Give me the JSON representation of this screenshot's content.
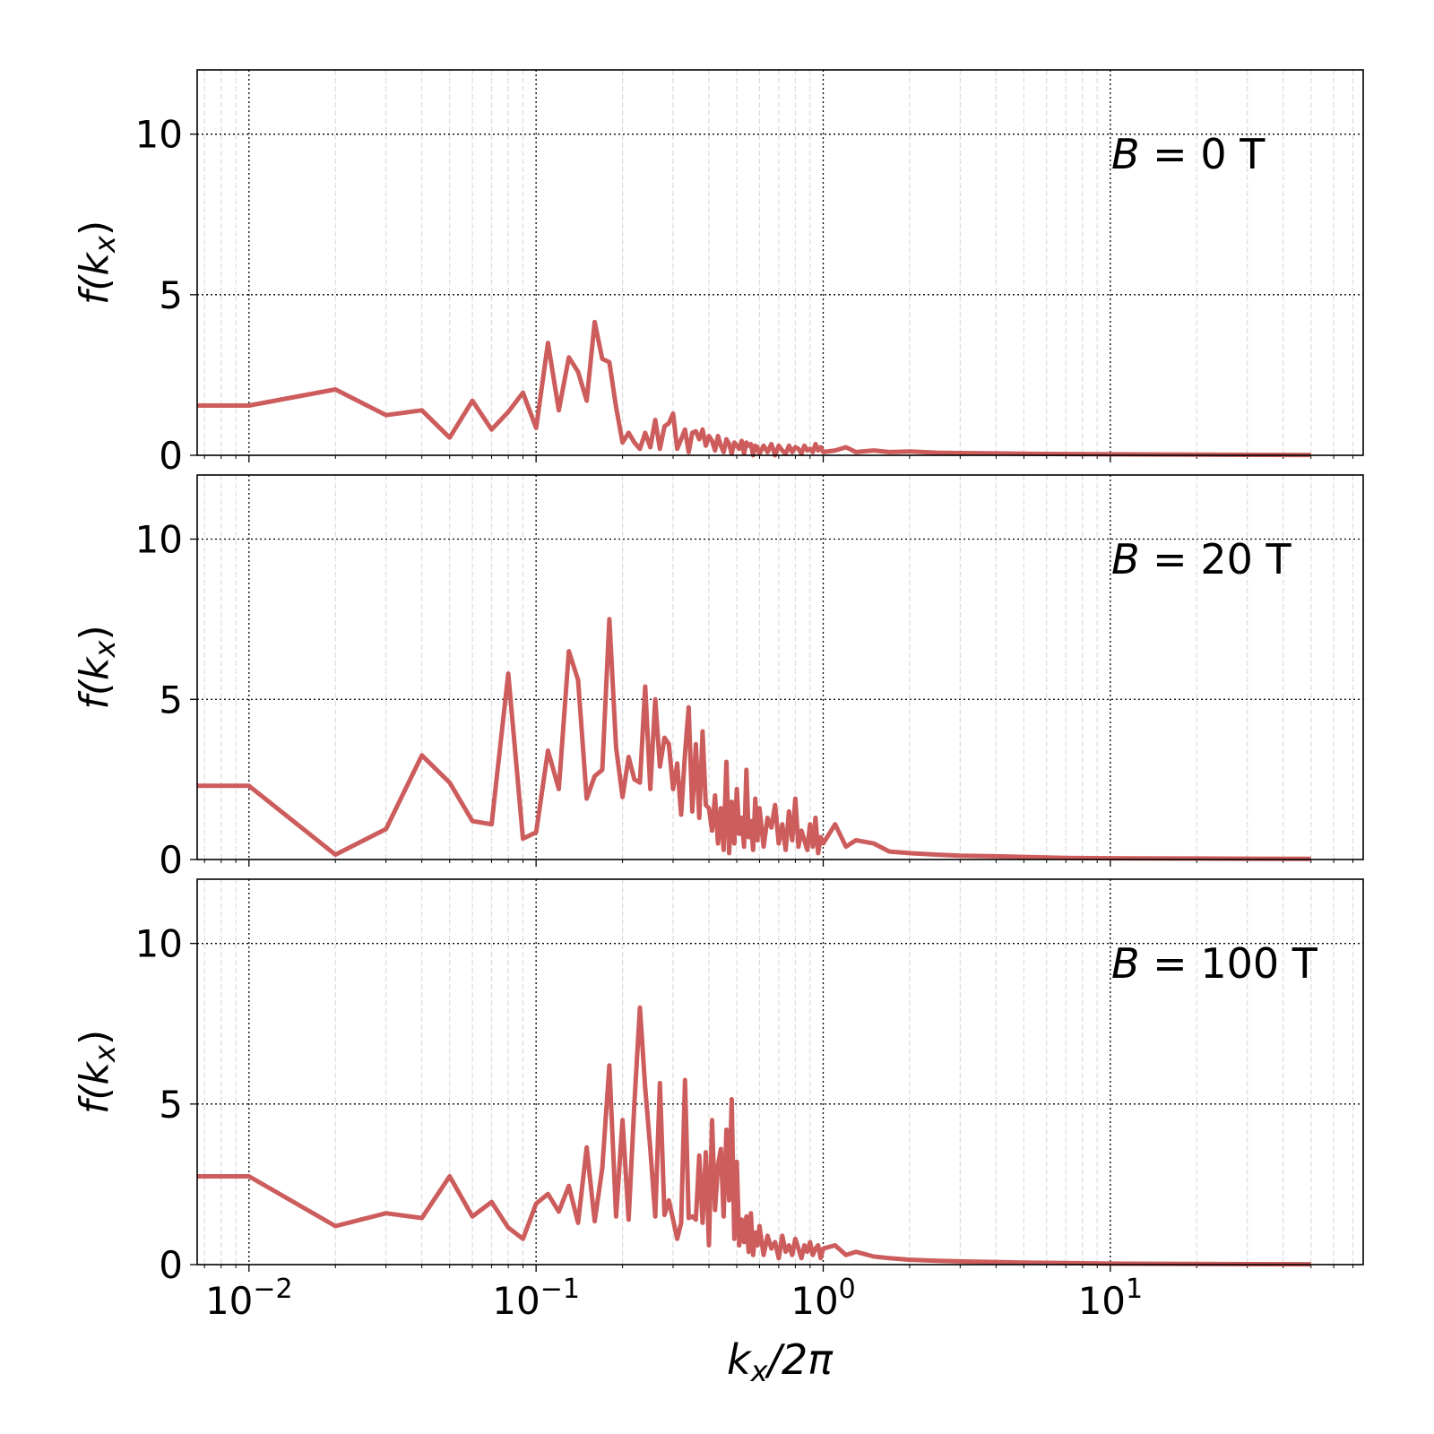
{
  "chart_data": [
    {
      "type": "line",
      "annotation": {
        "var": "B",
        "rest": " = 0 T"
      },
      "ylabel": {
        "main": "f(k",
        "sub": "x",
        "end": ")"
      },
      "xscale": "log",
      "xlim": [
        0.0066,
        76
      ],
      "ylim": [
        0,
        12
      ],
      "yticks": [
        0,
        5,
        10
      ],
      "grid": true,
      "color": "#cd5c5c",
      "x": [
        0.01,
        0.02,
        0.03,
        0.04,
        0.05,
        0.06,
        0.07,
        0.08,
        0.09,
        0.1,
        0.11,
        0.12,
        0.13,
        0.14,
        0.15,
        0.16,
        0.17,
        0.18,
        0.19,
        0.2,
        0.21,
        0.22,
        0.23,
        0.24,
        0.25,
        0.26,
        0.27,
        0.28,
        0.29,
        0.3,
        0.31,
        0.32,
        0.33,
        0.34,
        0.35,
        0.36,
        0.37,
        0.38,
        0.39,
        0.4,
        0.41,
        0.42,
        0.43,
        0.44,
        0.45,
        0.46,
        0.47,
        0.48,
        0.49,
        0.5,
        0.51,
        0.52,
        0.53,
        0.54,
        0.55,
        0.56,
        0.57,
        0.58,
        0.59,
        0.6,
        0.62,
        0.64,
        0.66,
        0.68,
        0.7,
        0.72,
        0.74,
        0.76,
        0.78,
        0.8,
        0.82,
        0.84,
        0.86,
        0.88,
        0.9,
        0.92,
        0.94,
        0.96,
        0.98,
        1.0,
        1.1,
        1.2,
        1.3,
        1.5,
        1.7,
        2,
        2.5,
        3,
        4,
        5,
        7,
        10,
        20,
        50
      ],
      "y": [
        1.55,
        2.05,
        1.25,
        1.4,
        0.55,
        1.7,
        0.8,
        1.35,
        1.95,
        0.85,
        3.5,
        1.4,
        3.05,
        2.6,
        1.7,
        4.15,
        3.0,
        2.9,
        1.5,
        0.4,
        0.7,
        0.4,
        0.2,
        0.7,
        0.25,
        1.1,
        0.2,
        0.9,
        1.0,
        1.3,
        0.2,
        0.5,
        0.8,
        0.1,
        0.7,
        0.75,
        0.5,
        0.8,
        0.3,
        0.6,
        0.45,
        0.15,
        0.6,
        0.3,
        0.1,
        0.5,
        0.35,
        0.05,
        0.4,
        0.3,
        0.2,
        0.45,
        0.05,
        0.4,
        0.3,
        0.35,
        0.0,
        0.3,
        0.25,
        0.05,
        0.3,
        0.1,
        0.35,
        0.0,
        0.3,
        0.15,
        0.05,
        0.3,
        0.1,
        0.25,
        0.2,
        0.05,
        0.3,
        0.15,
        0.2,
        0.1,
        0.35,
        0.15,
        0.25,
        0.1,
        0.15,
        0.25,
        0.1,
        0.15,
        0.1,
        0.12,
        0.08,
        0.07,
        0.06,
        0.05,
        0.04,
        0.03,
        0.02,
        0.01
      ]
    },
    {
      "type": "line",
      "annotation": {
        "var": "B",
        "rest": " = 20 T"
      },
      "ylabel": {
        "main": "f(k",
        "sub": "x",
        "end": ")"
      },
      "xscale": "log",
      "xlim": [
        0.0066,
        76
      ],
      "ylim": [
        0,
        12
      ],
      "yticks": [
        0,
        5,
        10
      ],
      "grid": true,
      "color": "#cd5c5c",
      "x": [
        0.01,
        0.02,
        0.03,
        0.04,
        0.05,
        0.06,
        0.07,
        0.08,
        0.09,
        0.1,
        0.11,
        0.12,
        0.13,
        0.14,
        0.15,
        0.16,
        0.17,
        0.18,
        0.19,
        0.2,
        0.21,
        0.22,
        0.23,
        0.24,
        0.25,
        0.26,
        0.27,
        0.28,
        0.29,
        0.3,
        0.31,
        0.32,
        0.33,
        0.34,
        0.35,
        0.36,
        0.37,
        0.38,
        0.39,
        0.4,
        0.41,
        0.42,
        0.43,
        0.44,
        0.45,
        0.46,
        0.47,
        0.48,
        0.49,
        0.5,
        0.51,
        0.52,
        0.53,
        0.54,
        0.55,
        0.56,
        0.57,
        0.58,
        0.59,
        0.6,
        0.62,
        0.64,
        0.66,
        0.68,
        0.7,
        0.72,
        0.74,
        0.76,
        0.78,
        0.8,
        0.82,
        0.84,
        0.86,
        0.88,
        0.9,
        0.92,
        0.94,
        0.96,
        0.98,
        1.0,
        1.1,
        1.2,
        1.3,
        1.5,
        1.7,
        2,
        2.5,
        3,
        4,
        5,
        7,
        10,
        20,
        50
      ],
      "y": [
        2.3,
        0.15,
        0.95,
        3.25,
        2.4,
        1.2,
        1.1,
        5.8,
        0.65,
        0.85,
        3.4,
        2.2,
        6.5,
        5.6,
        1.9,
        2.6,
        2.8,
        7.5,
        3.5,
        1.95,
        3.2,
        2.5,
        2.4,
        5.4,
        2.2,
        5.0,
        2.9,
        3.8,
        3.6,
        2.2,
        3.0,
        1.4,
        3.3,
        4.75,
        1.5,
        3.6,
        1.3,
        4.0,
        1.7,
        1.6,
        0.9,
        2.0,
        0.5,
        1.6,
        0.3,
        3.05,
        0.2,
        1.8,
        0.5,
        2.2,
        0.8,
        1.3,
        0.4,
        2.8,
        0.7,
        1.2,
        0.3,
        1.9,
        0.6,
        1.6,
        0.4,
        1.3,
        1.0,
        1.7,
        0.5,
        1.1,
        0.3,
        1.5,
        0.6,
        1.9,
        0.4,
        0.9,
        0.6,
        0.3,
        1.1,
        0.4,
        1.3,
        0.2,
        0.7,
        0.5,
        1.1,
        0.4,
        0.6,
        0.5,
        0.25,
        0.2,
        0.15,
        0.12,
        0.1,
        0.08,
        0.05,
        0.04,
        0.03,
        0.02
      ]
    },
    {
      "type": "line",
      "annotation": {
        "var": "B",
        "rest": " = 100 T"
      },
      "ylabel": {
        "main": "f(k",
        "sub": "x",
        "end": ")"
      },
      "xlabel": {
        "main": "k",
        "sub": "x",
        "end": "/2π"
      },
      "xscale": "log",
      "xlim": [
        0.0066,
        76
      ],
      "ylim": [
        0,
        12
      ],
      "yticks": [
        0,
        5,
        10
      ],
      "xticks": [
        {
          "base": "10",
          "exp": "−2"
        },
        {
          "base": "10",
          "exp": "−1"
        },
        {
          "base": "10",
          "exp": "0"
        },
        {
          "base": "10",
          "exp": "1"
        }
      ],
      "grid": true,
      "color": "#cd5c5c",
      "x": [
        0.01,
        0.02,
        0.03,
        0.04,
        0.05,
        0.06,
        0.07,
        0.08,
        0.09,
        0.1,
        0.11,
        0.12,
        0.13,
        0.14,
        0.15,
        0.16,
        0.17,
        0.18,
        0.19,
        0.2,
        0.21,
        0.22,
        0.23,
        0.24,
        0.25,
        0.26,
        0.27,
        0.28,
        0.29,
        0.3,
        0.31,
        0.32,
        0.33,
        0.34,
        0.35,
        0.36,
        0.37,
        0.38,
        0.39,
        0.4,
        0.41,
        0.42,
        0.43,
        0.44,
        0.45,
        0.46,
        0.47,
        0.48,
        0.49,
        0.5,
        0.51,
        0.52,
        0.53,
        0.54,
        0.55,
        0.56,
        0.57,
        0.58,
        0.59,
        0.6,
        0.62,
        0.64,
        0.66,
        0.68,
        0.7,
        0.72,
        0.74,
        0.76,
        0.78,
        0.8,
        0.82,
        0.84,
        0.86,
        0.88,
        0.9,
        0.92,
        0.94,
        0.96,
        0.98,
        1.0,
        1.1,
        1.2,
        1.3,
        1.5,
        1.7,
        2,
        2.5,
        3,
        4,
        5,
        7,
        10,
        20,
        50
      ],
      "y": [
        2.75,
        1.2,
        1.6,
        1.45,
        2.75,
        1.5,
        1.95,
        1.15,
        0.8,
        1.9,
        2.2,
        1.65,
        2.45,
        1.3,
        3.65,
        1.35,
        3.0,
        6.2,
        1.5,
        4.5,
        1.4,
        5.0,
        8.0,
        5.5,
        3.6,
        1.5,
        5.65,
        1.55,
        2.0,
        1.4,
        0.8,
        1.3,
        5.75,
        1.45,
        1.5,
        1.4,
        3.4,
        1.3,
        3.5,
        0.6,
        4.5,
        1.7,
        3.1,
        3.6,
        1.5,
        4.2,
        2.0,
        5.15,
        0.8,
        3.2,
        0.6,
        1.4,
        0.7,
        1.5,
        0.4,
        1.6,
        0.3,
        1.0,
        0.6,
        1.2,
        0.3,
        0.9,
        0.5,
        0.7,
        0.2,
        0.9,
        0.4,
        0.6,
        0.3,
        0.8,
        0.5,
        0.2,
        0.6,
        0.4,
        0.7,
        0.3,
        0.5,
        0.6,
        0.2,
        0.5,
        0.6,
        0.3,
        0.4,
        0.25,
        0.2,
        0.15,
        0.12,
        0.1,
        0.08,
        0.06,
        0.05,
        0.03,
        0.02,
        0.01
      ]
    }
  ]
}
